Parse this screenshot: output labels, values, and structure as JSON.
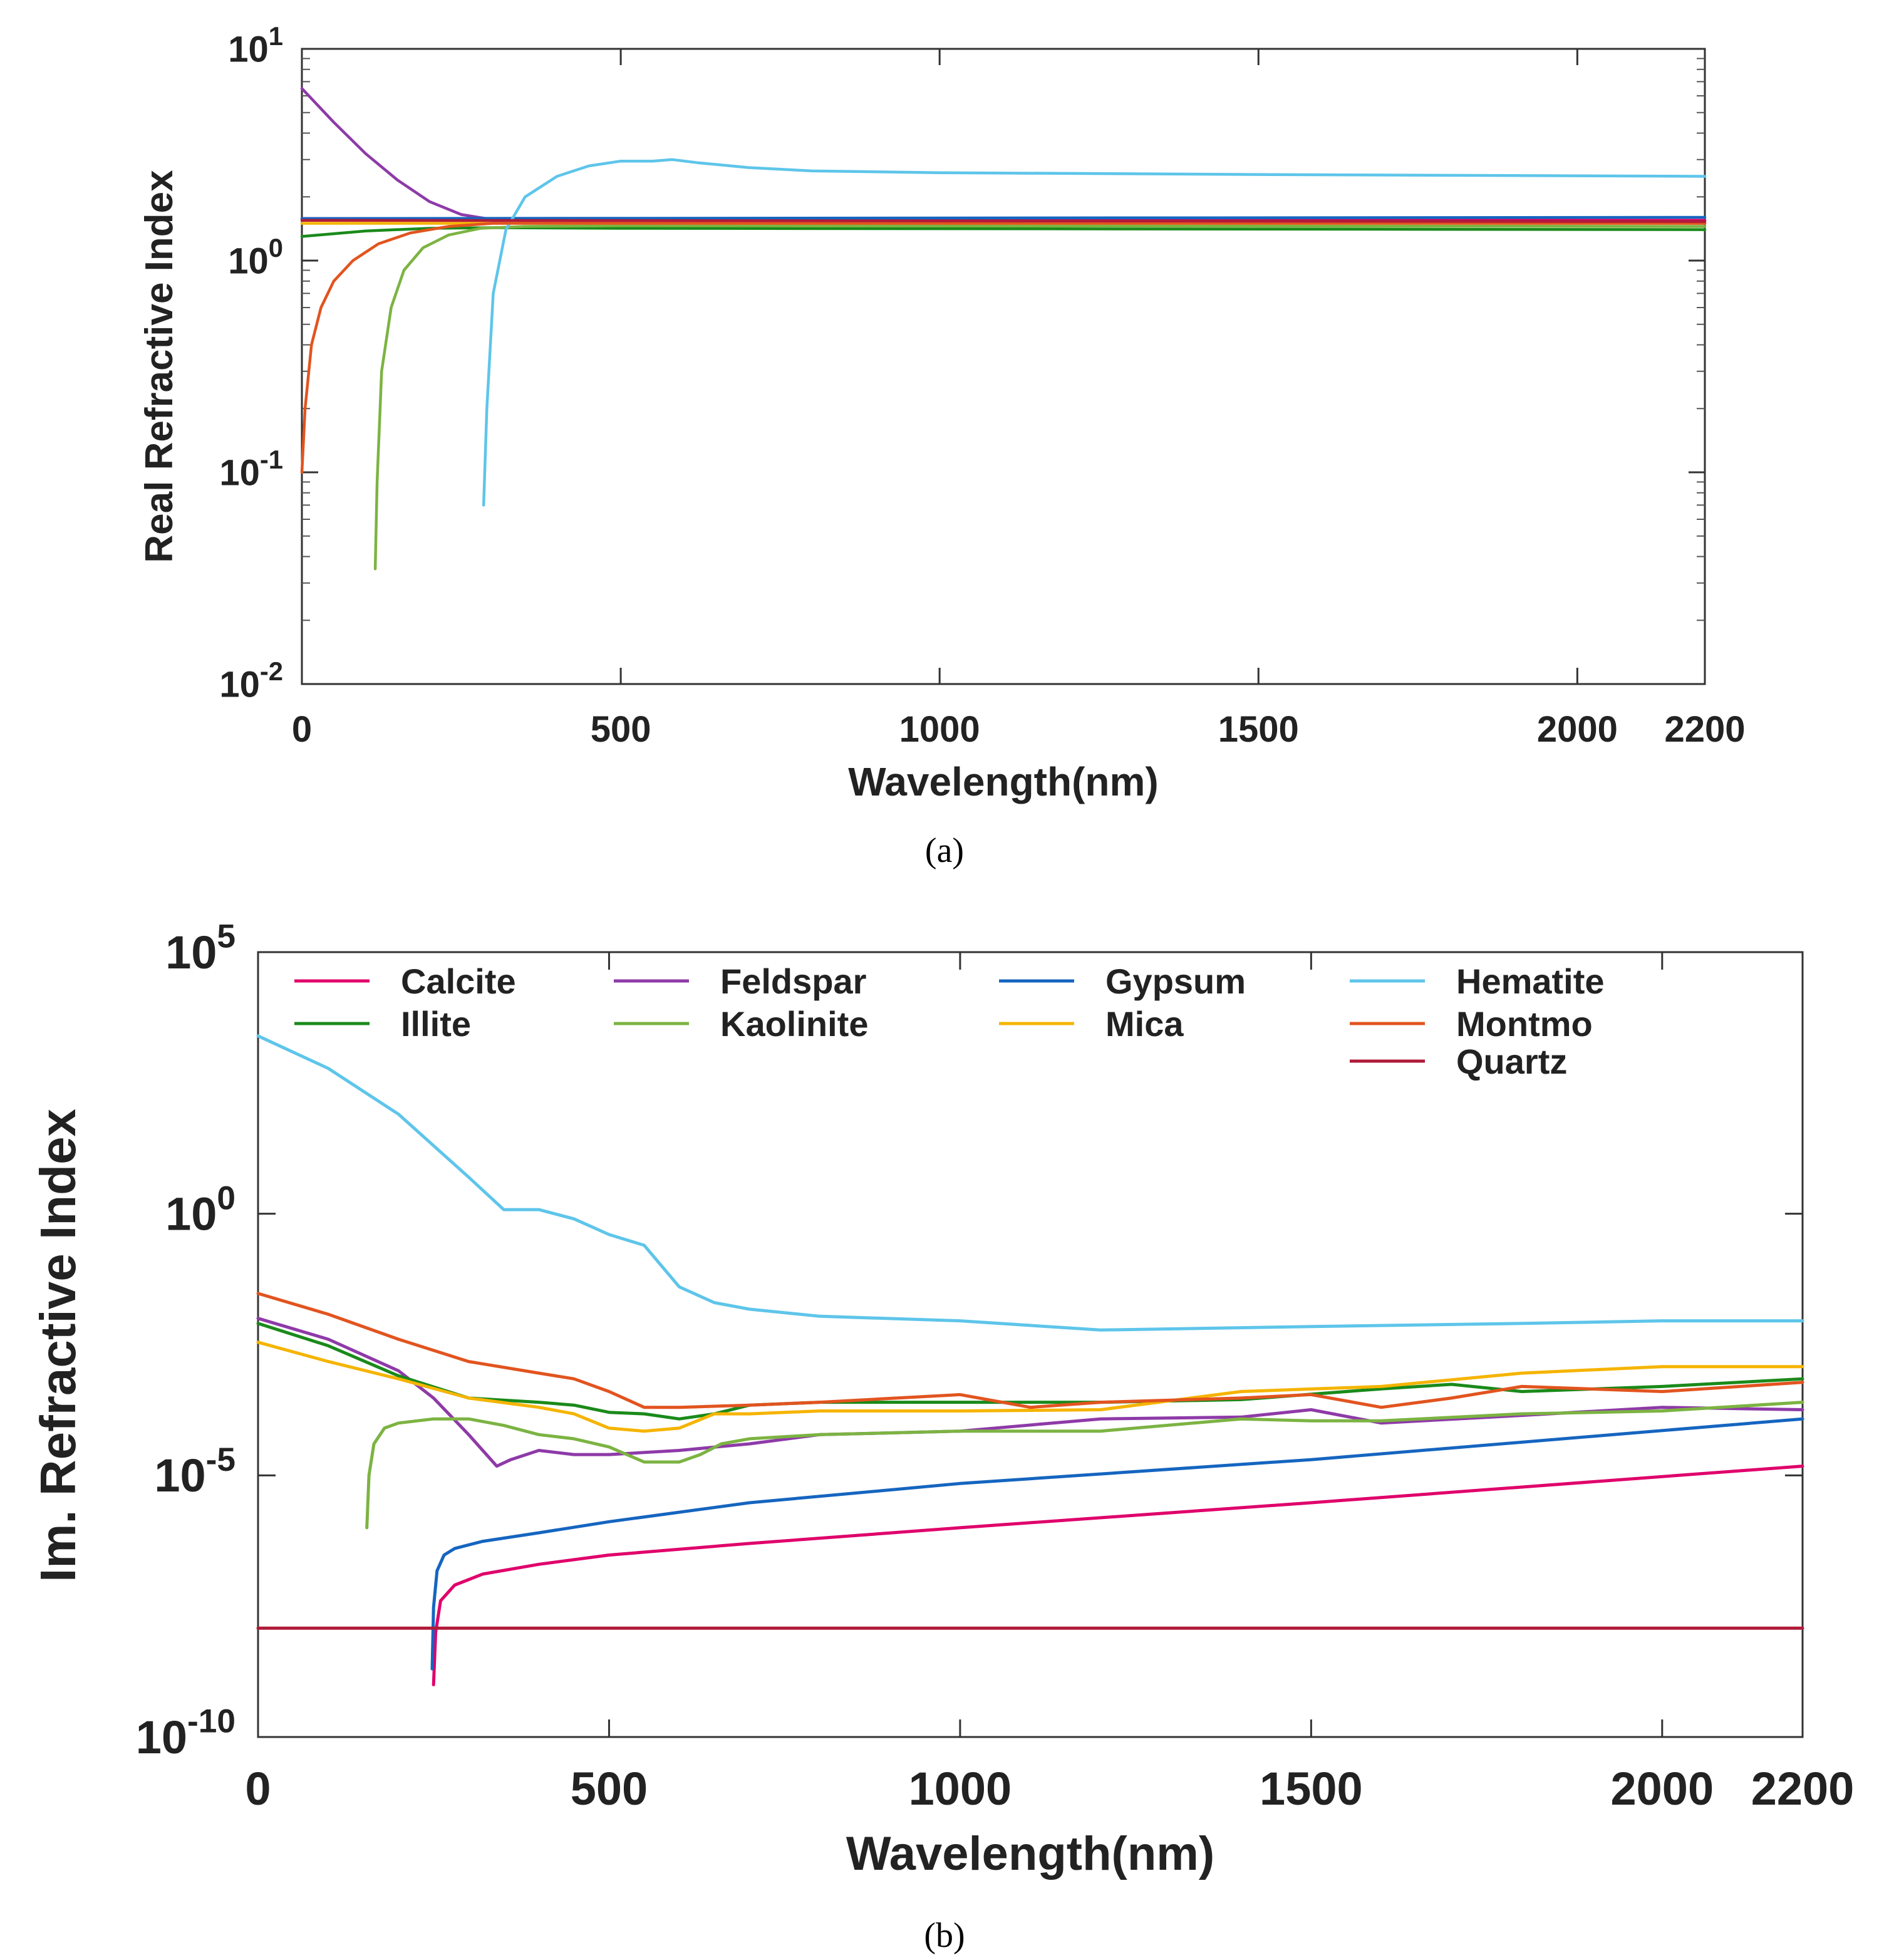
{
  "chart_data": [
    {
      "type": "line",
      "panel_label": "(a)",
      "xlabel": "Wavelength(nm)",
      "ylabel": "Real Refractive Index",
      "yscale": "log",
      "xlim": [
        0,
        2200
      ],
      "ylim": [
        0.01,
        10
      ],
      "xticks": [
        0,
        500,
        1000,
        1500,
        2000,
        2200
      ],
      "xtick_labels": [
        "0",
        "500",
        "1000",
        "1500",
        "2000",
        "2200"
      ],
      "yticks": [
        {
          "value": 10,
          "base": "10",
          "exp": "1"
        },
        {
          "value": 1,
          "base": "10",
          "exp": "0"
        },
        {
          "value": 0.1,
          "base": "10",
          "exp": "-1"
        },
        {
          "value": 0.01,
          "base": "10",
          "exp": "-2"
        }
      ],
      "series": [
        {
          "name": "Calcite",
          "color": "#e0006b",
          "x": [
            0,
            2200
          ],
          "y": [
            1.58,
            1.55
          ]
        },
        {
          "name": "Illite",
          "color": "#1a8a1a",
          "x": [
            0,
            100,
            200,
            300,
            500,
            2200
          ],
          "y": [
            1.3,
            1.38,
            1.42,
            1.43,
            1.42,
            1.4
          ]
        },
        {
          "name": "Feldspar",
          "color": "#8e3aa8",
          "x": [
            0,
            50,
            100,
            150,
            200,
            250,
            300,
            400,
            2200
          ],
          "y": [
            6.5,
            4.5,
            3.2,
            2.4,
            1.9,
            1.65,
            1.56,
            1.53,
            1.5
          ]
        },
        {
          "name": "Kaolinite",
          "color": "#7cb342",
          "x": [
            115,
            118,
            125,
            140,
            160,
            190,
            230,
            280,
            350,
            500,
            2200
          ],
          "y": [
            0.035,
            0.09,
            0.3,
            0.6,
            0.9,
            1.15,
            1.32,
            1.42,
            1.45,
            1.46,
            1.45
          ]
        },
        {
          "name": "Gypsum",
          "color": "#1565c0",
          "x": [
            0,
            2200
          ],
          "y": [
            1.58,
            1.6
          ]
        },
        {
          "name": "Mica",
          "color": "#f5b400",
          "x": [
            0,
            2200
          ],
          "y": [
            1.5,
            1.5
          ]
        },
        {
          "name": "Hematite",
          "color": "#5ec5ea",
          "x": [
            285,
            290,
            300,
            320,
            350,
            400,
            450,
            500,
            550,
            580,
            620,
            700,
            800,
            1000,
            1500,
            2200
          ],
          "y": [
            0.07,
            0.2,
            0.7,
            1.4,
            2.0,
            2.5,
            2.8,
            2.95,
            2.95,
            3.0,
            2.9,
            2.75,
            2.65,
            2.6,
            2.55,
            2.5
          ]
        },
        {
          "name": "Montmo",
          "color": "#e2541f",
          "x": [
            0,
            5,
            15,
            30,
            50,
            80,
            120,
            170,
            230,
            300,
            2200
          ],
          "y": [
            0.1,
            0.2,
            0.4,
            0.6,
            0.8,
            1.0,
            1.2,
            1.35,
            1.45,
            1.5,
            1.5
          ]
        },
        {
          "name": "Quartz",
          "color": "#b01a3a",
          "x": [
            0,
            2200
          ],
          "y": [
            1.55,
            1.53
          ]
        }
      ]
    },
    {
      "type": "line",
      "panel_label": "(b)",
      "xlabel": "Wavelength(nm)",
      "ylabel": "Im. Refractive Index",
      "yscale": "log",
      "xlim": [
        0,
        2200
      ],
      "ylim": [
        1e-10,
        100000
      ],
      "xticks": [
        0,
        500,
        1000,
        1500,
        2000,
        2200
      ],
      "xtick_labels": [
        "0",
        "500",
        "1000",
        "1500",
        "2000",
        "2200"
      ],
      "yticks": [
        {
          "value": 100000,
          "base": "10",
          "exp": "5"
        },
        {
          "value": 1,
          "base": "10",
          "exp": "0"
        },
        {
          "value": 1e-05,
          "base": "10",
          "exp": "-5"
        },
        {
          "value": 1e-10,
          "base": "10",
          "exp": "-10"
        }
      ],
      "legend": [
        "Calcite",
        "Feldspar",
        "Gypsum",
        "Hematite",
        "Illite",
        "Kaolinite",
        "Mica",
        "Montmo",
        "Quartz"
      ],
      "series": [
        {
          "name": "Calcite",
          "color": "#e0006b",
          "x": [
            250,
            253,
            260,
            280,
            320,
            400,
            500,
            700,
            1000,
            1500,
            2200
          ],
          "y": [
            1e-09,
            1e-08,
            4e-08,
            8e-08,
            1.3e-07,
            2e-07,
            3e-07,
            5e-07,
            1e-06,
            3e-06,
            1.5e-05
          ]
        },
        {
          "name": "Feldspar",
          "color": "#8e3aa8",
          "x": [
            0,
            100,
            200,
            250,
            300,
            340,
            360,
            400,
            450,
            500,
            600,
            700,
            800,
            1000,
            1200,
            1400,
            1500,
            1600,
            1800,
            2000,
            2200
          ],
          "y": [
            0.01,
            0.004,
            0.001,
            0.0003,
            6e-05,
            1.5e-05,
            2e-05,
            3e-05,
            2.5e-05,
            2.5e-05,
            3e-05,
            4e-05,
            6e-05,
            7e-05,
            0.00012,
            0.00013,
            0.00018,
            0.0001,
            0.00014,
            0.0002,
            0.00018
          ]
        },
        {
          "name": "Gypsum",
          "color": "#1565c0",
          "x": [
            248,
            250,
            255,
            265,
            280,
            320,
            400,
            500,
            700,
            1000,
            1500,
            2200
          ],
          "y": [
            2e-09,
            3e-08,
            1.5e-07,
            3e-07,
            4e-07,
            5.5e-07,
            8e-07,
            1.3e-06,
            3e-06,
            7e-06,
            2e-05,
            0.00012
          ]
        },
        {
          "name": "Hematite",
          "color": "#5ec5ea",
          "x": [
            0,
            100,
            200,
            300,
            350,
            400,
            450,
            500,
            550,
            600,
            650,
            700,
            800,
            1000,
            1200,
            1500,
            1800,
            2000,
            2200
          ],
          "y": [
            2500,
            600,
            80,
            5,
            1.2,
            1.2,
            0.8,
            0.4,
            0.25,
            0.04,
            0.02,
            0.015,
            0.011,
            0.009,
            0.006,
            0.007,
            0.008,
            0.009,
            0.009
          ]
        },
        {
          "name": "Illite",
          "color": "#1a8a1a",
          "x": [
            0,
            100,
            200,
            300,
            400,
            450,
            500,
            550,
            600,
            650,
            700,
            800,
            1000,
            1200,
            1400,
            1600,
            1700,
            1800,
            2000,
            2200
          ],
          "y": [
            0.008,
            0.003,
            0.0008,
            0.0003,
            0.00025,
            0.00022,
            0.00016,
            0.00015,
            0.00012,
            0.00015,
            0.00022,
            0.00025,
            0.00025,
            0.00025,
            0.00028,
            0.00045,
            0.00055,
            0.0004,
            0.0005,
            0.0007
          ]
        },
        {
          "name": "Kaolinite",
          "color": "#7cb342",
          "x": [
            155,
            158,
            165,
            180,
            200,
            250,
            300,
            350,
            400,
            450,
            500,
            550,
            600,
            630,
            660,
            700,
            800,
            1000,
            1200,
            1400,
            1500,
            1600,
            1800,
            2000,
            2200
          ],
          "y": [
            1e-06,
            1e-05,
            4e-05,
            8e-05,
            0.0001,
            0.00012,
            0.00012,
            9e-05,
            6e-05,
            5e-05,
            3.5e-05,
            1.8e-05,
            1.8e-05,
            2.5e-05,
            4e-05,
            5e-05,
            6e-05,
            7e-05,
            7e-05,
            0.00012,
            0.00011,
            0.00011,
            0.00015,
            0.00017,
            0.00025
          ]
        },
        {
          "name": "Mica",
          "color": "#f5b400",
          "x": [
            0,
            100,
            200,
            300,
            400,
            450,
            500,
            550,
            600,
            650,
            700,
            800,
            1000,
            1200,
            1400,
            1600,
            1800,
            2000,
            2200
          ],
          "y": [
            0.0035,
            0.0015,
            0.0007,
            0.0003,
            0.0002,
            0.00015,
            8e-05,
            7e-05,
            8e-05,
            0.00015,
            0.00015,
            0.00017,
            0.00017,
            0.00018,
            0.0004,
            0.0005,
            0.0009,
            0.0012,
            0.0012
          ]
        },
        {
          "name": "Montmo",
          "color": "#e2541f",
          "x": [
            0,
            100,
            200,
            300,
            400,
            450,
            500,
            550,
            600,
            700,
            800,
            1000,
            1100,
            1200,
            1400,
            1500,
            1600,
            1700,
            1800,
            2000,
            2200
          ],
          "y": [
            0.03,
            0.012,
            0.004,
            0.0015,
            0.0009,
            0.0007,
            0.0004,
            0.0002,
            0.0002,
            0.00022,
            0.00025,
            0.00035,
            0.0002,
            0.00025,
            0.0003,
            0.00035,
            0.0002,
            0.0003,
            0.0005,
            0.0004,
            0.0006
          ]
        },
        {
          "name": "Quartz",
          "color": "#b01a3a",
          "x": [
            0,
            2200
          ],
          "y": [
            1.2e-08,
            1.2e-08
          ]
        }
      ]
    }
  ]
}
